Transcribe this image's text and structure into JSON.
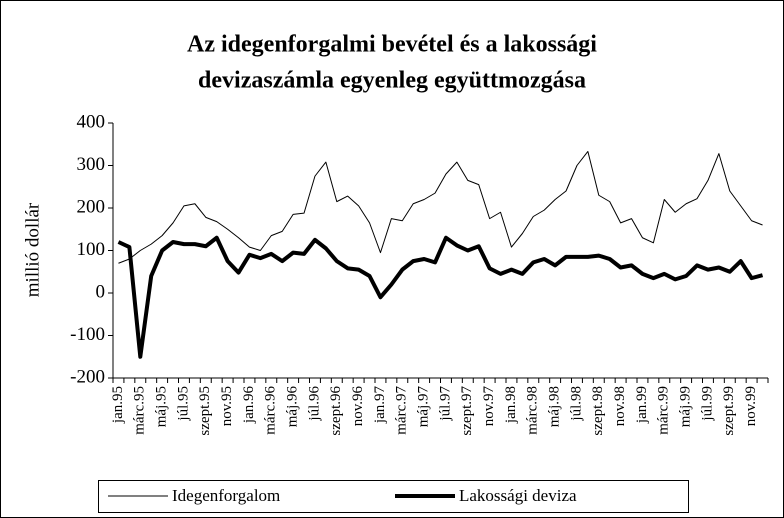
{
  "chart_data": {
    "type": "line",
    "title": [
      "Az idegenforgalmi bevétel  és a lakossági",
      "devizaszámla egyenleg együttmozgása"
    ],
    "y_label": "millió dollár",
    "categories": [
      "jan.95",
      null,
      "márc.95",
      null,
      "máj.95",
      null,
      "júl.95",
      null,
      "szept.95",
      null,
      "nov.95",
      null,
      "jan.96",
      null,
      "márc.96",
      null,
      "máj.96",
      null,
      "júl.96",
      null,
      "szept.96",
      null,
      "nov.96",
      null,
      "jan.97",
      null,
      "márc.97",
      null,
      "máj.97",
      null,
      "júl.97",
      null,
      "szept.97",
      null,
      "nov.97",
      null,
      "jan.98",
      null,
      "márc.98",
      null,
      "máj.98",
      null,
      "júl.98",
      null,
      "szept.98",
      null,
      "nov.98",
      null,
      "jan.99",
      null,
      "márc.99",
      null,
      "máj.99",
      null,
      "júl.99",
      null,
      "szept.99",
      null,
      "nov.99",
      null
    ],
    "series": [
      {
        "name": "Idegenforgalom",
        "color": "#000000",
        "width": 1,
        "values": [
          70,
          80,
          100,
          115,
          135,
          165,
          205,
          210,
          178,
          168,
          150,
          130,
          108,
          100,
          135,
          145,
          185,
          188,
          275,
          308,
          215,
          228,
          205,
          165,
          95,
          175,
          170,
          210,
          220,
          235,
          280,
          308,
          265,
          255,
          175,
          190,
          108,
          140,
          180,
          195,
          220,
          240,
          300,
          333,
          230,
          215,
          165,
          175,
          130,
          118,
          220,
          190,
          210,
          222,
          265,
          328,
          240,
          205,
          170,
          160
        ]
      },
      {
        "name": "Lakossági deviza",
        "color": "#000000",
        "width": 4,
        "values": [
          120,
          108,
          -150,
          40,
          100,
          120,
          115,
          115,
          110,
          130,
          75,
          48,
          90,
          82,
          92,
          75,
          95,
          92,
          125,
          105,
          75,
          58,
          55,
          40,
          -10,
          20,
          55,
          75,
          80,
          72,
          130,
          112,
          100,
          110,
          58,
          45,
          55,
          45,
          72,
          80,
          65,
          85,
          85,
          85,
          88,
          80,
          60,
          65,
          45,
          35,
          45,
          32,
          40,
          65,
          55,
          60,
          50,
          75,
          35,
          42
        ]
      }
    ],
    "ylim": [
      -200,
      400
    ],
    "yticks": [
      -200,
      -100,
      0,
      100,
      200,
      300,
      400
    ],
    "grid": false,
    "legend": "bottom"
  }
}
